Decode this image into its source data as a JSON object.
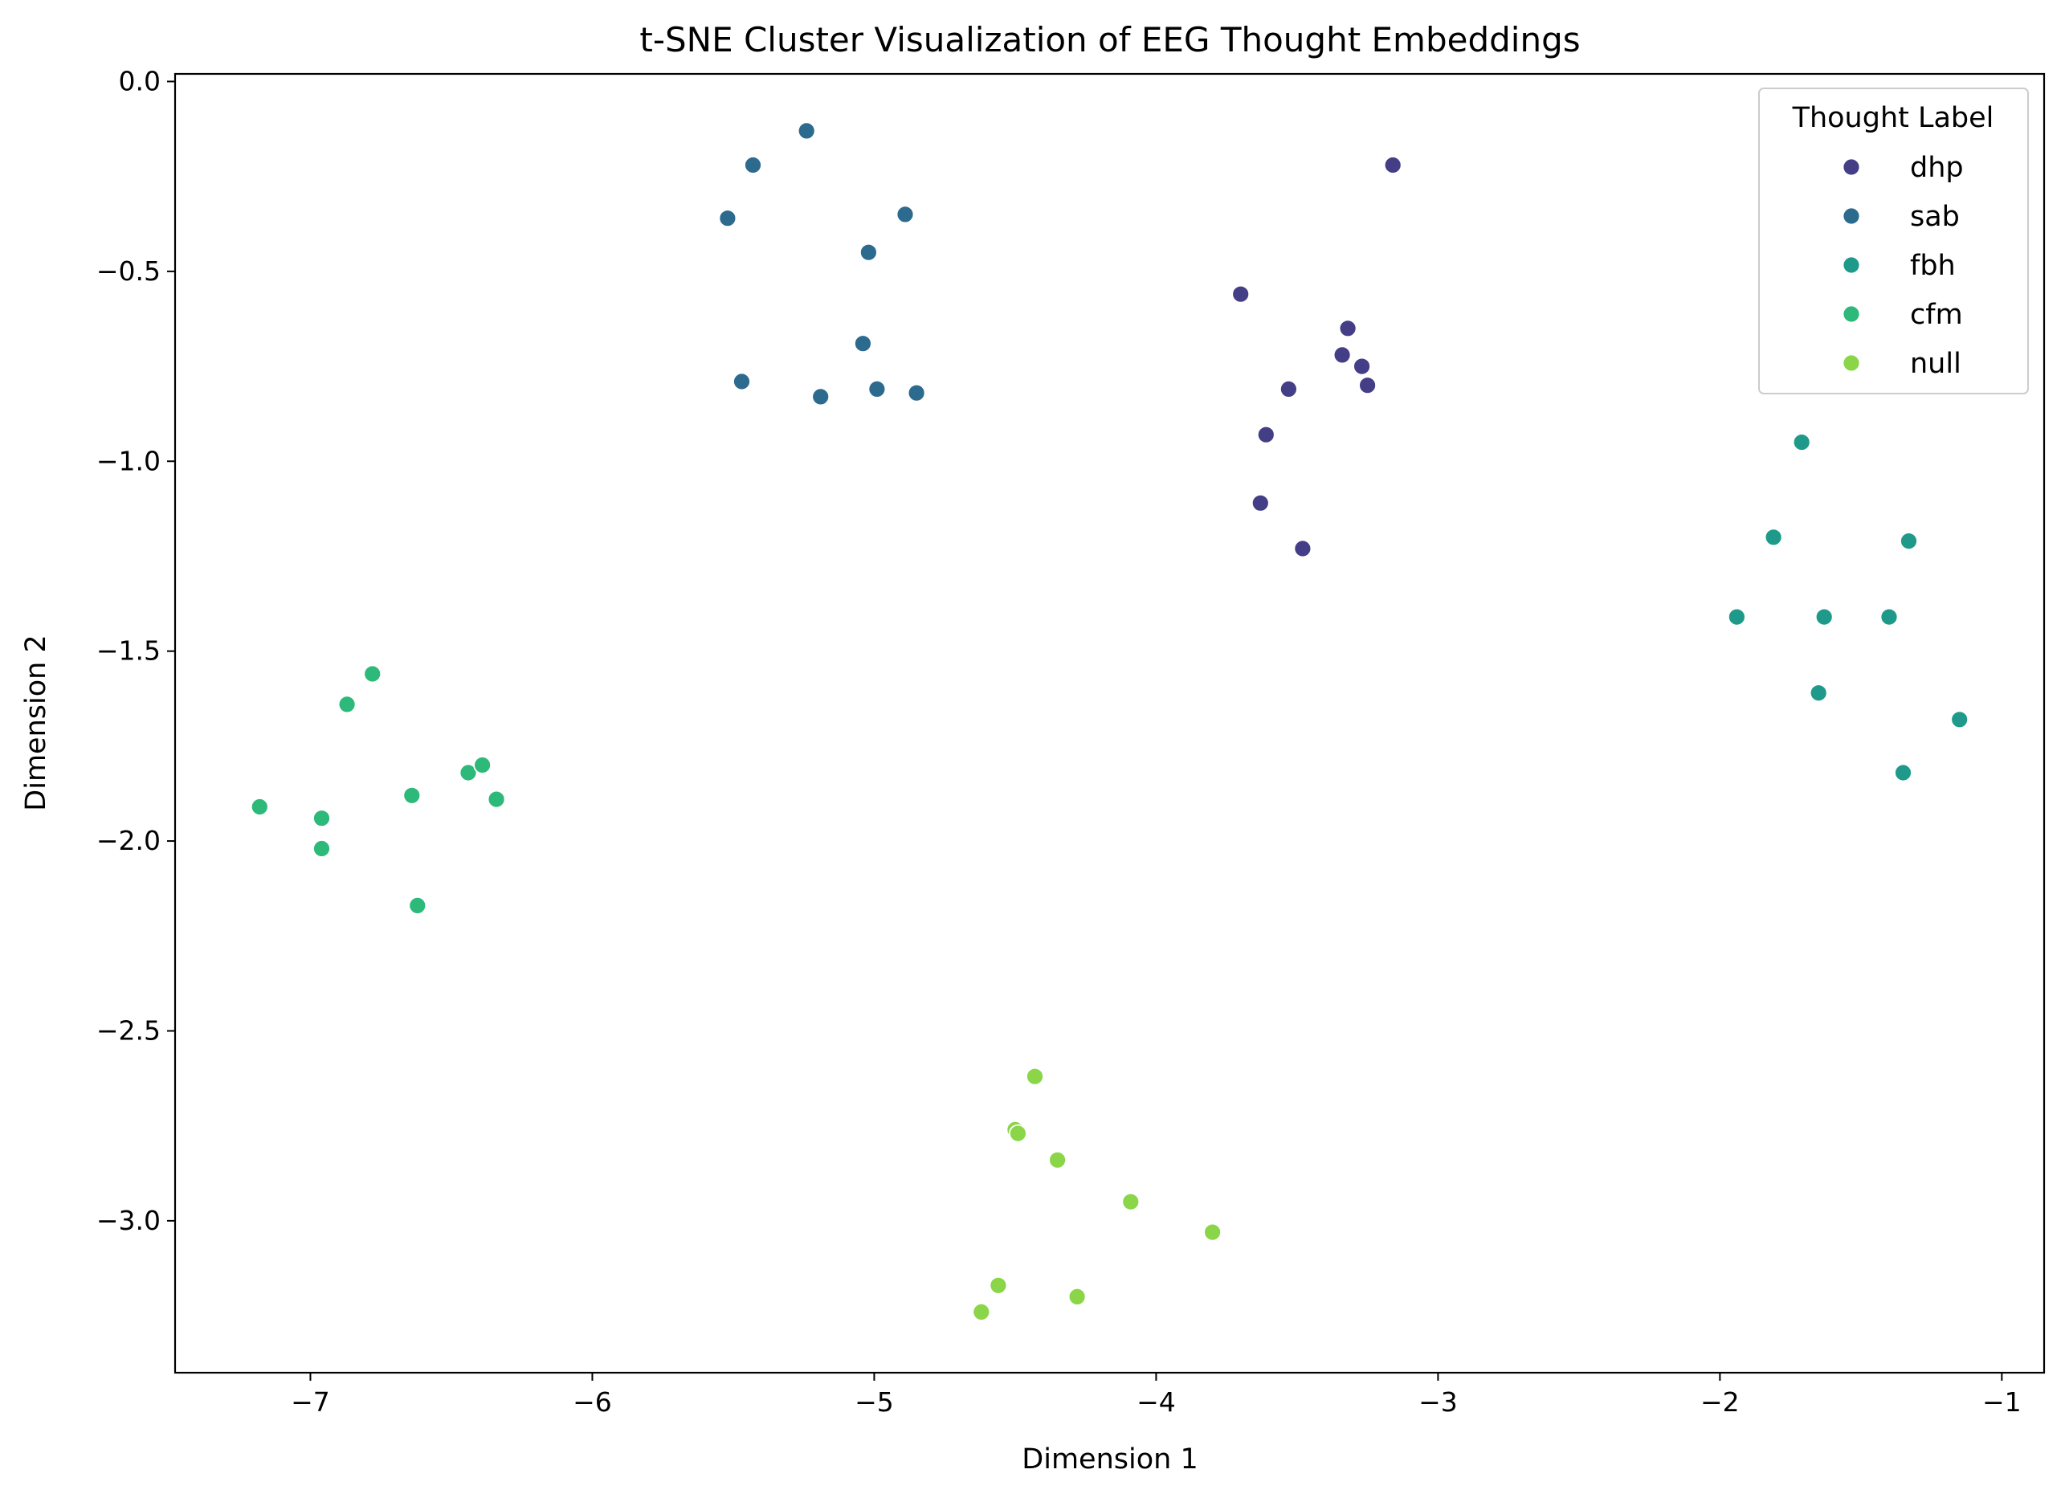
{
  "chart_data": {
    "type": "scatter",
    "title": "t-SNE Cluster Visualization of EEG Thought Embeddings",
    "xlabel": "Dimension 1",
    "ylabel": "Dimension 2",
    "xlim": [
      -7.48,
      -0.85
    ],
    "ylim": [
      -3.4,
      0.02
    ],
    "xticks": [
      -7,
      -6,
      -5,
      -4,
      -3,
      -2,
      -1
    ],
    "yticks": [
      0.0,
      -0.5,
      -1.0,
      -1.5,
      -2.0,
      -2.5,
      -3.0
    ],
    "xtick_labels": [
      "−7",
      "−6",
      "−5",
      "−4",
      "−3",
      "−2",
      "−1"
    ],
    "ytick_labels": [
      "0.0",
      "−0.5",
      "−1.0",
      "−1.5",
      "−2.0",
      "−2.5",
      "−3.0"
    ],
    "grid": false,
    "legend": {
      "title": "Thought Label",
      "position": "top-right"
    },
    "series": [
      {
        "name": "dhp",
        "color": "#433e85",
        "points": [
          [
            -3.16,
            -0.22
          ],
          [
            -3.7,
            -0.56
          ],
          [
            -3.32,
            -0.65
          ],
          [
            -3.34,
            -0.72
          ],
          [
            -3.27,
            -0.75
          ],
          [
            -3.25,
            -0.8
          ],
          [
            -3.53,
            -0.81
          ],
          [
            -3.61,
            -0.93
          ],
          [
            -3.63,
            -1.11
          ],
          [
            -3.48,
            -1.23
          ]
        ]
      },
      {
        "name": "sab",
        "color": "#2c6a8e",
        "points": [
          [
            -5.24,
            -0.13
          ],
          [
            -5.43,
            -0.22
          ],
          [
            -5.52,
            -0.36
          ],
          [
            -4.89,
            -0.35
          ],
          [
            -5.02,
            -0.45
          ],
          [
            -5.04,
            -0.69
          ],
          [
            -5.47,
            -0.79
          ],
          [
            -5.19,
            -0.83
          ],
          [
            -4.99,
            -0.81
          ],
          [
            -4.85,
            -0.82
          ]
        ]
      },
      {
        "name": "fbh",
        "color": "#1f9a8a",
        "points": [
          [
            -1.71,
            -0.95
          ],
          [
            -1.81,
            -1.2
          ],
          [
            -1.33,
            -1.21
          ],
          [
            -1.94,
            -1.41
          ],
          [
            -1.63,
            -1.41
          ],
          [
            -1.4,
            -1.41
          ],
          [
            -1.65,
            -1.61
          ],
          [
            -1.15,
            -1.68
          ],
          [
            -1.35,
            -1.82
          ]
        ]
      },
      {
        "name": "cfm",
        "color": "#2db97a",
        "points": [
          [
            -6.78,
            -1.56
          ],
          [
            -6.87,
            -1.64
          ],
          [
            -7.18,
            -1.91
          ],
          [
            -6.96,
            -1.94
          ],
          [
            -6.96,
            -2.02
          ],
          [
            -6.64,
            -1.88
          ],
          [
            -6.44,
            -1.82
          ],
          [
            -6.39,
            -1.8
          ],
          [
            -6.34,
            -1.89
          ],
          [
            -6.62,
            -2.17
          ]
        ]
      },
      {
        "name": "null",
        "color": "#8ad548",
        "points": [
          [
            -4.43,
            -2.62
          ],
          [
            -4.5,
            -2.76
          ],
          [
            -4.49,
            -2.77
          ],
          [
            -4.35,
            -2.84
          ],
          [
            -4.09,
            -2.95
          ],
          [
            -3.8,
            -3.03
          ],
          [
            -4.56,
            -3.17
          ],
          [
            -4.28,
            -3.2
          ],
          [
            -4.62,
            -3.24
          ]
        ]
      }
    ]
  }
}
